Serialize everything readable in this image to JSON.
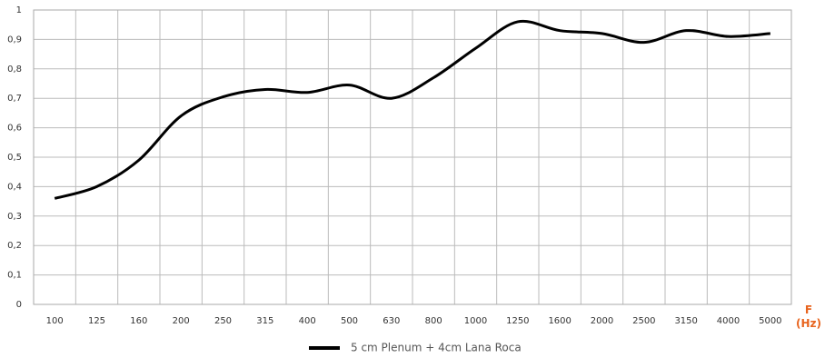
{
  "chart_data": {
    "type": "line",
    "categories": [
      "100",
      "125",
      "160",
      "200",
      "250",
      "315",
      "400",
      "500",
      "630",
      "800",
      "1000",
      "1250",
      "1600",
      "2000",
      "2500",
      "3150",
      "4000",
      "5000"
    ],
    "series": [
      {
        "name": "5 cm Plenum + 4cm Lana Roca",
        "color": "#000000",
        "values": [
          0.36,
          0.4,
          0.49,
          0.64,
          0.705,
          0.73,
          0.72,
          0.745,
          0.7,
          0.77,
          0.87,
          0.96,
          0.93,
          0.92,
          0.89,
          0.93,
          0.91,
          0.92
        ]
      }
    ],
    "x_label": "F (Hz)",
    "ylim": [
      0,
      1
    ],
    "yticks": [
      0,
      {
        "value": 0.1,
        "label": "0,1"
      },
      {
        "value": 0.2,
        "label": "0,2"
      },
      {
        "value": 0.3,
        "label": "0,3"
      },
      {
        "value": 0.4,
        "label": "0,4"
      },
      {
        "value": 0.5,
        "label": "0,5"
      },
      {
        "value": 0.6,
        "label": "0,6"
      },
      {
        "value": 0.7,
        "label": "0,7"
      },
      {
        "value": 0.8,
        "label": "0,8"
      },
      {
        "value": 0.9,
        "label": "0,9"
      },
      1
    ],
    "grid": true,
    "legend": "bottom"
  }
}
